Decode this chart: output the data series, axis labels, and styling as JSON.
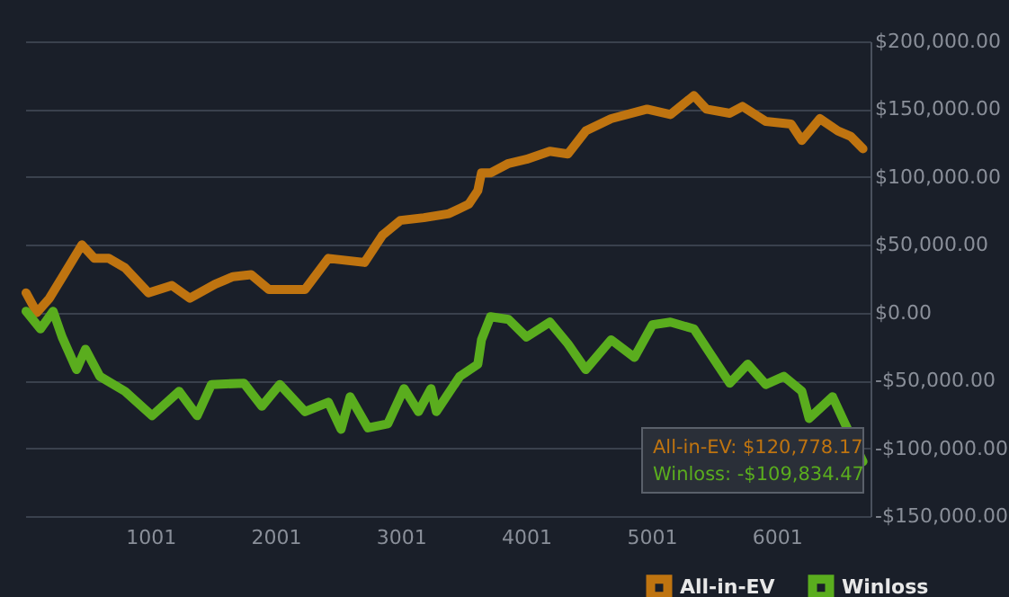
{
  "chart_data": {
    "type": "line",
    "xlim": [
      1,
      6750
    ],
    "xticks": [
      1001,
      2001,
      3001,
      4001,
      5001,
      6001
    ],
    "ylim": [
      -150000,
      200000
    ],
    "yticks": [
      {
        "value": -150000,
        "label": "-$150,000.00"
      },
      {
        "value": -100000,
        "label": "-$100,000.00"
      },
      {
        "value": -50000,
        "label": "-$50,000.00"
      },
      {
        "value": 0,
        "label": "$0.00"
      },
      {
        "value": 50000,
        "label": "$50,000.00"
      },
      {
        "value": 100000,
        "label": "$100,000.00"
      },
      {
        "value": 150000,
        "label": "$150,000.00"
      },
      {
        "value": 200000,
        "label": "$200,000.00"
      }
    ],
    "grid": "y",
    "legend": "bottom right",
    "marker": "none",
    "line_style": "solid",
    "series": [
      {
        "name": "All-in-EV",
        "color": "#bf7410",
        "x": [
          8,
          94,
          195,
          310,
          454,
          554,
          669,
          798,
          985,
          1172,
          1316,
          1517,
          1660,
          1804,
          1948,
          2235,
          2422,
          2710,
          2853,
          2997,
          3184,
          3385,
          3543,
          3615,
          3644,
          3716,
          3860,
          4003,
          4190,
          4334,
          4477,
          4679,
          4966,
          5153,
          5340,
          5440,
          5627,
          5728,
          5914,
          6116,
          6202,
          6346,
          6490,
          6591,
          6690
        ],
        "values": [
          14600,
          0,
          10600,
          28000,
          50000,
          40000,
          40000,
          33000,
          14600,
          20000,
          10600,
          21000,
          26500,
          28000,
          17000,
          17000,
          40000,
          37000,
          57000,
          68000,
          70000,
          73000,
          80000,
          90000,
          103000,
          103000,
          110000,
          113000,
          119000,
          117000,
          134000,
          143000,
          150000,
          146000,
          160000,
          150000,
          147000,
          152000,
          141000,
          139000,
          127000,
          143000,
          134000,
          130000,
          120778.17
        ]
      },
      {
        "name": "Winloss",
        "color": "#5aad1e",
        "x": [
          8,
          123,
          224,
          296,
          411,
          482,
          597,
          798,
          1014,
          1230,
          1374,
          1488,
          1747,
          1891,
          2034,
          2235,
          2422,
          2523,
          2595,
          2738,
          2896,
          3026,
          3141,
          3241,
          3284,
          3471,
          3615,
          3644,
          3716,
          3860,
          4003,
          4190,
          4334,
          4477,
          4679,
          4865,
          5009,
          5153,
          5340,
          5483,
          5627,
          5770,
          5914,
          6058,
          6202,
          6260,
          6447,
          6547,
          6690
        ],
        "values": [
          1000,
          -12000,
          1000,
          -18000,
          -42000,
          -27000,
          -47000,
          -58000,
          -76000,
          -58000,
          -76000,
          -53000,
          -52000,
          -69000,
          -53000,
          -73000,
          -66000,
          -86000,
          -62000,
          -85000,
          -82000,
          -56000,
          -73000,
          -56000,
          -73000,
          -47000,
          -38000,
          -20000,
          -3000,
          -5000,
          -18000,
          -7000,
          -23000,
          -42000,
          -20000,
          -33000,
          -9000,
          -7000,
          -12000,
          -32000,
          -52000,
          -38000,
          -53000,
          -47000,
          -58000,
          -78000,
          -62000,
          -82000,
          -109834.47
        ]
      }
    ],
    "annotations": [
      "All-in-EV: $120,778.17",
      "Winloss: -$109,834.47"
    ]
  }
}
